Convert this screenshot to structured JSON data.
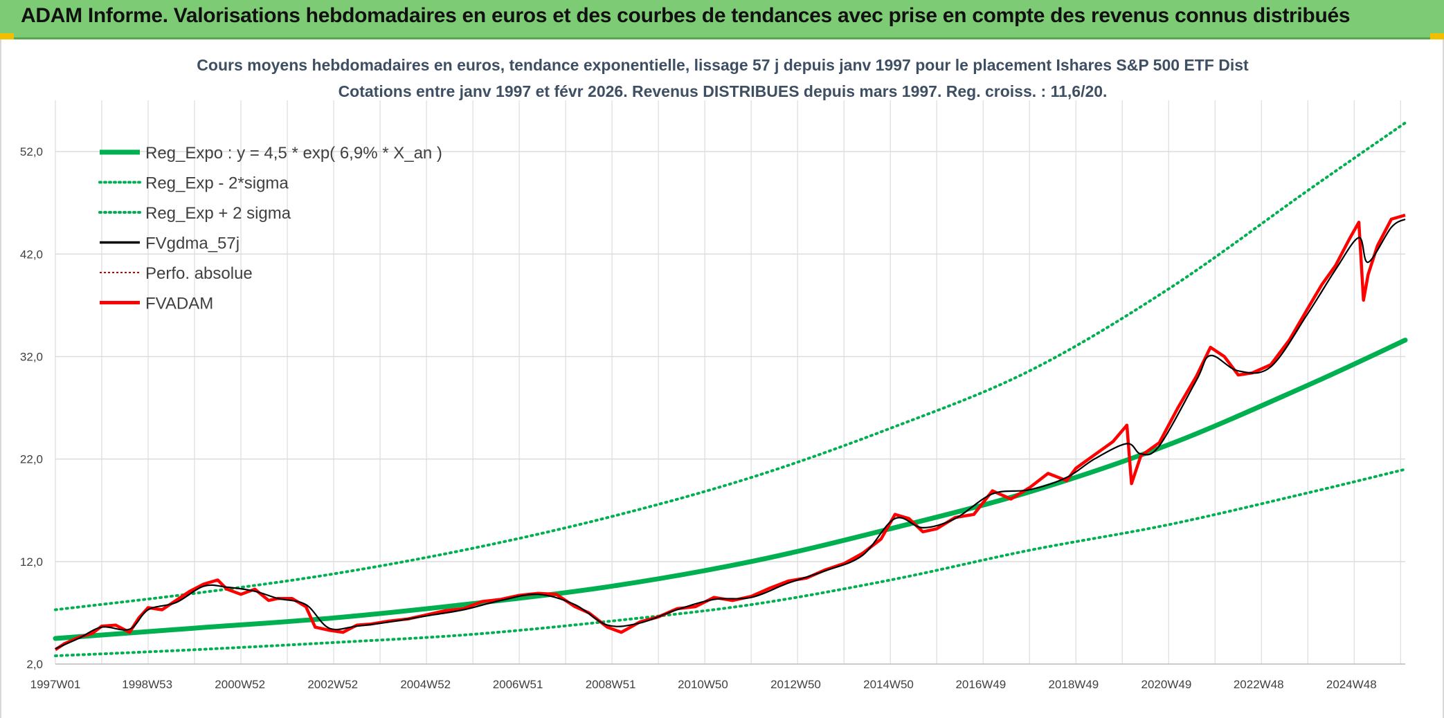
{
  "header": {
    "title": "ADAM Informe. Valorisations hebdomadaires en euros et des courbes de tendances avec prise en compte des revenus connus distribués"
  },
  "colors": {
    "header_bg": "#7dcb74",
    "regression": "#00b050",
    "fvgdma": "#000000",
    "fvadam": "#ff0000",
    "perfo": "#c00000",
    "grid": "#dcdcdc"
  },
  "chart_data": {
    "type": "line",
    "title_lines": [
      "Cours moyens hebdomadaires en euros, tendance exponentielle, lissage 57 j depuis janv 1997 pour le placement Ishares S&P 500 ETF Dist",
      "Cotations entre janv 1997 et févr 2026. Revenus DISTRIBUES depuis mars 1997. Reg. croiss. : 11,6/20."
    ],
    "xlabel": "",
    "ylabel": "",
    "ylim": [
      2.0,
      57.0
    ],
    "y_ticks": [
      "2,0",
      "12,0",
      "22,0",
      "32,0",
      "42,0",
      "52,0"
    ],
    "y_tick_values": [
      2.0,
      12.0,
      22.0,
      32.0,
      42.0,
      52.0
    ],
    "x_range": [
      1997.0,
      2026.1
    ],
    "x_ticks": [
      "1997W01",
      "1998W53",
      "2000W52",
      "2002W52",
      "2004W52",
      "2006W51",
      "2008W51",
      "2010W50",
      "2012W50",
      "2014W50",
      "2016W49",
      "2018W49",
      "2020W49",
      "2022W48",
      "2024W48"
    ],
    "x_tick_values": [
      1997.0,
      1998.98,
      2000.98,
      2002.98,
      2004.98,
      2006.97,
      2008.97,
      2010.96,
      2012.96,
      2014.96,
      2016.95,
      2018.95,
      2020.95,
      2022.94,
      2024.94
    ],
    "grid": true,
    "legend_position": "top-left",
    "legend": [
      {
        "name": "Reg_Expo : y = 4,5 * exp( 6,9% *  X_an )",
        "style": "solid-thick",
        "color": "#00b050"
      },
      {
        "name": "Reg_Exp - 2*sigma",
        "style": "dotted",
        "color": "#00b050"
      },
      {
        "name": "Reg_Exp + 2 sigma",
        "style": "dotted",
        "color": "#00b050"
      },
      {
        "name": "FVgdma_57j",
        "style": "solid",
        "color": "#000000"
      },
      {
        "name": "Perfo. absolue",
        "style": "dotted-thin",
        "color": "#c00000"
      },
      {
        "name": "FVADAM",
        "style": "solid-thick",
        "color": "#ff0000"
      }
    ],
    "regression": {
      "x": [
        1997.0,
        2000.0,
        2003.0,
        2006.0,
        2009.0,
        2012.0,
        2015.0,
        2018.0,
        2021.0,
        2024.0,
        2026.1
      ],
      "y": [
        4.5,
        5.5,
        6.5,
        7.9,
        9.6,
        12.0,
        15.2,
        18.8,
        23.4,
        29.2,
        33.6
      ]
    },
    "regression_minus_2sigma": {
      "x": [
        1997.0,
        2000.0,
        2003.0,
        2006.0,
        2009.0,
        2012.0,
        2015.0,
        2018.0,
        2021.0,
        2024.0,
        2026.1
      ],
      "y": [
        2.8,
        3.4,
        4.1,
        4.9,
        6.2,
        7.8,
        10.2,
        13.1,
        15.6,
        18.7,
        21.0
      ]
    },
    "regression_plus_2sigma": {
      "x": [
        1997.0,
        2000.0,
        2003.0,
        2006.0,
        2009.0,
        2012.0,
        2015.0,
        2018.0,
        2021.0,
        2024.0,
        2026.1
      ],
      "y": [
        7.3,
        8.9,
        10.8,
        13.3,
        16.4,
        20.2,
        25.0,
        30.6,
        38.6,
        48.2,
        54.8
      ]
    },
    "series": [
      {
        "name": "FVADAM",
        "x": [
          1997.0,
          1997.2,
          1997.5,
          1997.8,
          1998.0,
          1998.3,
          1998.6,
          1998.8,
          1999.0,
          1999.3,
          1999.6,
          1999.9,
          2000.2,
          2000.5,
          2000.7,
          2001.0,
          2001.3,
          2001.6,
          2001.8,
          2002.1,
          2002.4,
          2002.6,
          2002.9,
          2003.2,
          2003.5,
          2003.8,
          2004.2,
          2004.6,
          2005.0,
          2005.4,
          2005.8,
          2006.2,
          2006.6,
          2007.0,
          2007.4,
          2007.8,
          2008.2,
          2008.5,
          2008.9,
          2009.2,
          2009.6,
          2010.0,
          2010.4,
          2010.8,
          2011.2,
          2011.6,
          2012.0,
          2012.4,
          2012.8,
          2013.2,
          2013.6,
          2014.0,
          2014.4,
          2014.8,
          2015.1,
          2015.4,
          2015.7,
          2016.0,
          2016.4,
          2016.8,
          2017.2,
          2017.6,
          2018.0,
          2018.4,
          2018.8,
          2019.0,
          2019.4,
          2019.8,
          2020.1,
          2020.2,
          2020.4,
          2020.8,
          2021.2,
          2021.6,
          2021.9,
          2022.2,
          2022.5,
          2022.8,
          2023.2,
          2023.6,
          2024.0,
          2024.3,
          2024.6,
          2024.9,
          2025.1,
          2025.2,
          2025.3,
          2025.5,
          2025.8,
          2026.1
        ],
        "y": [
          3.4,
          4.0,
          4.6,
          5.0,
          5.7,
          5.8,
          5.1,
          6.5,
          7.5,
          7.3,
          8.2,
          9.1,
          9.8,
          10.2,
          9.3,
          8.8,
          9.3,
          8.2,
          8.4,
          8.4,
          7.6,
          5.6,
          5.3,
          5.1,
          5.8,
          5.9,
          6.2,
          6.4,
          6.8,
          7.2,
          7.4,
          8.1,
          8.3,
          8.7,
          8.9,
          8.8,
          7.6,
          7.0,
          5.6,
          5.1,
          6.1,
          6.6,
          7.4,
          7.6,
          8.5,
          8.2,
          8.6,
          9.4,
          10.1,
          10.4,
          11.2,
          11.8,
          12.8,
          14.2,
          16.6,
          16.2,
          14.9,
          15.2,
          16.3,
          16.6,
          18.9,
          18.1,
          19.2,
          20.6,
          19.9,
          21.1,
          22.4,
          23.7,
          25.3,
          19.6,
          22.3,
          23.6,
          27.0,
          30.1,
          32.9,
          32.0,
          30.2,
          30.4,
          31.2,
          33.6,
          36.7,
          39.0,
          40.9,
          43.5,
          45.1,
          37.5,
          40.0,
          42.8,
          45.4,
          45.8
        ]
      },
      {
        "name": "FVgdma_57j",
        "x": [
          1997.0,
          1997.5,
          1998.0,
          1998.6,
          1999.0,
          1999.6,
          2000.2,
          2000.7,
          2001.3,
          2001.8,
          2002.4,
          2002.9,
          2003.5,
          2004.2,
          2005.0,
          2005.8,
          2006.6,
          2007.4,
          2008.2,
          2008.9,
          2009.6,
          2010.4,
          2011.2,
          2012.0,
          2012.8,
          2013.6,
          2014.4,
          2015.1,
          2015.7,
          2016.4,
          2017.2,
          2018.0,
          2018.8,
          2019.4,
          2020.1,
          2020.4,
          2020.8,
          2021.6,
          2021.9,
          2022.5,
          2023.2,
          2024.0,
          2024.6,
          2025.1,
          2025.3,
          2025.8,
          2026.1
        ],
        "y": [
          3.5,
          4.5,
          5.6,
          5.4,
          7.3,
          8.0,
          9.6,
          9.5,
          9.1,
          8.4,
          7.8,
          5.5,
          5.7,
          6.1,
          6.7,
          7.3,
          8.2,
          8.8,
          7.8,
          5.8,
          6.0,
          7.3,
          8.3,
          8.5,
          9.9,
          11.1,
          12.6,
          16.2,
          15.3,
          16.2,
          18.6,
          19.0,
          20.2,
          22.0,
          23.5,
          22.5,
          23.3,
          29.7,
          32.1,
          30.6,
          31.0,
          36.2,
          40.5,
          43.6,
          41.2,
          44.6,
          45.4
        ]
      }
    ]
  }
}
